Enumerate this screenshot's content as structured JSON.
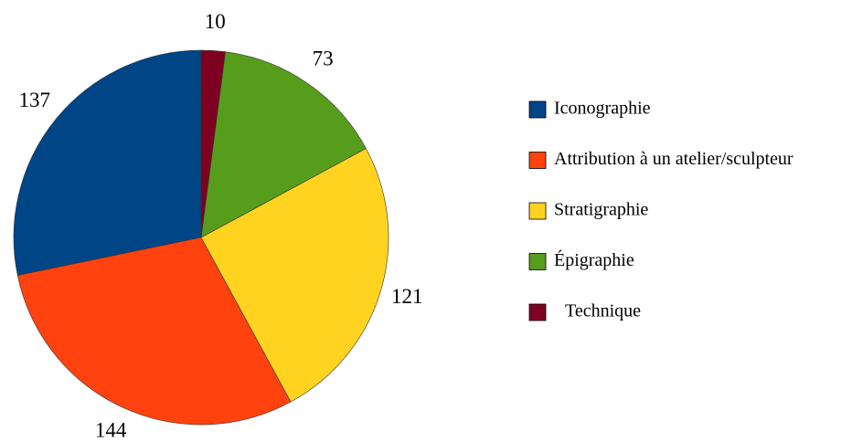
{
  "chart_data": {
    "type": "pie",
    "categories": [
      "Iconographie",
      "Attribution à un atelier/sculpteur",
      "Stratigraphie",
      "Épigraphie",
      "Technique"
    ],
    "values": [
      137,
      144,
      121,
      73,
      10
    ],
    "colors": [
      "#004586",
      "#ff420e",
      "#ffd320",
      "#579d1c",
      "#7e0021"
    ],
    "legend": "right"
  }
}
